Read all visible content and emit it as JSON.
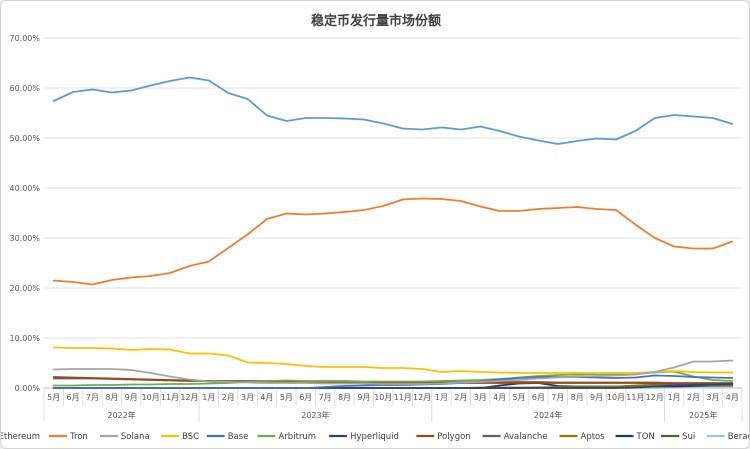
{
  "chart_data": {
    "type": "line",
    "title": "稳定币发行量市场份额",
    "xlabel": "",
    "ylabel": "",
    "ylim": [
      0,
      70
    ],
    "yticks": [
      "0.00%",
      "10.00%",
      "20.00%",
      "30.00%",
      "40.00%",
      "50.00%",
      "60.00%",
      "70.00%"
    ],
    "grid": true,
    "legend": "bottom",
    "x": [
      "5月",
      "6月",
      "7月",
      "8月",
      "9月",
      "10月",
      "11月",
      "12月",
      "1月",
      "2月",
      "3月",
      "4月",
      "5月",
      "6月",
      "7月",
      "8月",
      "9月",
      "10月",
      "11月",
      "12月",
      "1月",
      "2月",
      "3月",
      "4月",
      "5月",
      "6月",
      "7月",
      "8月",
      "9月",
      "10月",
      "11月",
      "12月",
      "1月",
      "2月",
      "3月",
      "4月"
    ],
    "year_groups": [
      {
        "label": "2022年",
        "start": 0,
        "count": 8
      },
      {
        "label": "2023年",
        "start": 8,
        "count": 12
      },
      {
        "label": "2024年",
        "start": 20,
        "count": 12
      },
      {
        "label": "2025年",
        "start": 32,
        "count": 4
      }
    ],
    "series": [
      {
        "name": "Ethereum",
        "color": "#5b9bd5",
        "values": [
          57.4,
          59.2,
          59.7,
          59.1,
          59.5,
          60.5,
          61.4,
          62.1,
          61.5,
          59.0,
          57.8,
          54.5,
          53.4,
          54.0,
          54.0,
          53.9,
          53.7,
          52.9,
          51.9,
          51.7,
          52.1,
          51.7,
          52.3,
          51.4,
          50.3,
          49.5,
          48.8,
          49.4,
          49.9,
          49.7,
          51.4,
          54.0,
          54.6,
          54.3,
          54.0,
          52.8
        ]
      },
      {
        "name": "Tron",
        "color": "#ed7d31",
        "values": [
          21.5,
          21.2,
          20.7,
          21.6,
          22.1,
          22.4,
          23.0,
          24.4,
          25.3,
          28.0,
          30.7,
          33.8,
          34.9,
          34.7,
          34.9,
          35.2,
          35.6,
          36.4,
          37.7,
          37.9,
          37.8,
          37.4,
          36.3,
          35.4,
          35.4,
          35.8,
          36.0,
          36.2,
          35.8,
          35.6,
          32.7,
          30.0,
          28.3,
          27.9,
          27.9,
          29.3
        ]
      },
      {
        "name": "Solana",
        "color": "#a5a5a5",
        "values": [
          3.7,
          3.8,
          3.8,
          3.8,
          3.6,
          3.0,
          2.3,
          1.7,
          1.3,
          1.2,
          1.1,
          1.0,
          1.0,
          1.0,
          0.9,
          0.9,
          0.9,
          0.8,
          0.8,
          0.8,
          0.9,
          1.1,
          1.2,
          1.4,
          1.6,
          1.9,
          2.1,
          2.3,
          2.4,
          2.5,
          2.7,
          3.2,
          4.1,
          5.3,
          5.3,
          5.5
        ]
      },
      {
        "name": "BSC",
        "color": "#ffc000",
        "values": [
          8.1,
          8.0,
          8.0,
          7.9,
          7.6,
          7.8,
          7.7,
          6.9,
          6.9,
          6.5,
          5.1,
          5.0,
          4.8,
          4.4,
          4.2,
          4.2,
          4.2,
          4.0,
          4.0,
          3.8,
          3.2,
          3.4,
          3.2,
          3.1,
          3.0,
          3.0,
          3.0,
          3.0,
          3.0,
          3.0,
          3.0,
          3.2,
          3.4,
          3.2,
          3.1,
          3.1
        ]
      },
      {
        "name": "Base",
        "color": "#4472c4",
        "values": [
          0,
          0,
          0,
          0,
          0,
          0,
          0,
          0,
          0,
          0,
          0,
          0,
          0,
          0,
          0.2,
          0.4,
          0.5,
          0.6,
          0.6,
          0.7,
          0.8,
          1.0,
          1.3,
          1.7,
          2.0,
          2.2,
          2.2,
          2.2,
          2.1,
          2.0,
          2.1,
          2.5,
          2.4,
          2.2,
          2.1,
          2.0
        ]
      },
      {
        "name": "Arbitrum",
        "color": "#70ad47",
        "values": [
          0.5,
          0.5,
          0.6,
          0.6,
          0.7,
          0.7,
          0.8,
          0.8,
          0.9,
          1.0,
          1.2,
          1.4,
          1.5,
          1.4,
          1.4,
          1.4,
          1.3,
          1.3,
          1.3,
          1.3,
          1.4,
          1.5,
          1.6,
          1.8,
          2.1,
          2.4,
          2.6,
          2.7,
          2.8,
          2.8,
          2.8,
          3.1,
          3.3,
          2.3,
          1.6,
          1.4
        ]
      },
      {
        "name": "Hyperliquid",
        "color": "#264478",
        "values": [
          0,
          0,
          0,
          0,
          0,
          0,
          0,
          0,
          0,
          0,
          0,
          0,
          0,
          0,
          0,
          0,
          0,
          0,
          0,
          0,
          0,
          0,
          0,
          0,
          0,
          0,
          0,
          0,
          0,
          0,
          0.1,
          0.3,
          0.5,
          0.6,
          0.7,
          0.8
        ]
      },
      {
        "name": "Polygon",
        "color": "#9e480e",
        "values": [
          2.2,
          2.1,
          2.0,
          1.9,
          1.8,
          1.7,
          1.6,
          1.5,
          1.4,
          1.3,
          1.3,
          1.2,
          1.2,
          1.1,
          1.1,
          1.1,
          1.1,
          1.0,
          1.0,
          1.0,
          1.0,
          1.0,
          1.0,
          1.0,
          1.0,
          1.0,
          1.0,
          1.0,
          1.0,
          1.0,
          1.0,
          0.9,
          0.9,
          0.9,
          0.9,
          0.9
        ]
      },
      {
        "name": "Avalanche",
        "color": "#636363",
        "values": [
          1.9,
          1.9,
          1.9,
          1.8,
          1.7,
          1.6,
          1.5,
          1.4,
          1.4,
          1.4,
          1.4,
          1.4,
          1.3,
          1.3,
          1.3,
          1.3,
          1.2,
          1.2,
          1.2,
          1.2,
          1.2,
          1.2,
          1.2,
          1.2,
          1.2,
          1.2,
          1.1,
          1.1,
          1.1,
          1.1,
          1.1,
          1.1,
          1.0,
          1.0,
          1.0,
          1.0
        ]
      },
      {
        "name": "Aptos",
        "color": "#997300",
        "values": [
          0,
          0,
          0,
          0,
          0,
          0,
          0,
          0,
          0,
          0,
          0,
          0,
          0,
          0,
          0,
          0,
          0,
          0,
          0,
          0,
          0,
          0,
          0.1,
          0.1,
          0.1,
          0.1,
          0.2,
          0.2,
          0.2,
          0.3,
          0.4,
          0.5,
          0.6,
          0.6,
          0.6,
          0.6
        ]
      },
      {
        "name": "TON",
        "color": "#1f3864",
        "values": [
          0,
          0,
          0,
          0,
          0,
          0,
          0,
          0,
          0,
          0,
          0,
          0,
          0,
          0,
          0,
          0,
          0,
          0,
          0,
          0,
          0,
          0,
          0,
          0.5,
          0.9,
          1.0,
          0.4,
          0.3,
          0.3,
          0.3,
          0.3,
          0.3,
          0.3,
          0.4,
          0.5,
          0.5
        ]
      },
      {
        "name": "Sui",
        "color": "#43682b",
        "values": [
          0,
          0,
          0,
          0,
          0,
          0,
          0,
          0,
          0,
          0,
          0,
          0,
          0,
          0,
          0,
          0,
          0,
          0,
          0,
          0,
          0,
          0,
          0,
          0,
          0,
          0.1,
          0.1,
          0.1,
          0.2,
          0.3,
          0.5,
          0.6,
          0.6,
          0.7,
          0.7,
          0.7
        ]
      },
      {
        "name": "Berachain",
        "color": "#9dc3e6",
        "values": [
          0,
          0,
          0,
          0,
          0,
          0,
          0,
          0,
          0,
          0,
          0,
          0,
          0,
          0,
          0,
          0,
          0,
          0,
          0,
          0,
          0,
          0,
          0,
          0,
          0,
          0,
          0,
          0,
          0,
          0,
          0,
          0,
          0.1,
          0.3,
          0.3,
          0.3
        ]
      }
    ]
  }
}
